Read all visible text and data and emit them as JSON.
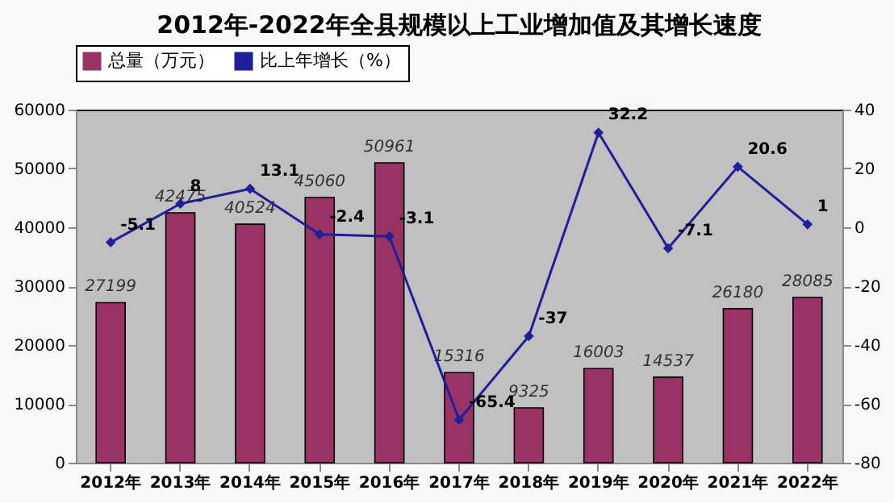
{
  "chart_data": {
    "type": "bar",
    "title": "2012年-2022年全县规模以上工业增加值及其增长速度",
    "categories": [
      "2012年",
      "2013年",
      "2014年",
      "2015年",
      "2016年",
      "2017年",
      "2018年",
      "2019年",
      "2020年",
      "2021年",
      "2022年"
    ],
    "series": [
      {
        "name": "总量（万元）",
        "color": "#993366",
        "values": [
          27199,
          42475,
          40524,
          45060,
          50961,
          15316,
          9325,
          16003,
          14537,
          26180,
          28085
        ]
      },
      {
        "name": "比上年增长（%）",
        "type": "line",
        "axis": "y2",
        "color": "#1f1f99",
        "marker": "diamond",
        "values": [
          -5.1,
          8,
          13.1,
          -2.4,
          -3.1,
          -65.4,
          -37,
          32.2,
          -7.1,
          20.6,
          1
        ]
      }
    ],
    "ylim": [
      0,
      60000
    ],
    "yticks": [
      0,
      10000,
      20000,
      30000,
      40000,
      50000,
      60000
    ],
    "y2lim": [
      -80,
      40
    ],
    "y2ticks": [
      -80,
      -60,
      -40,
      -20,
      0,
      20,
      40
    ],
    "data_labels": true,
    "grid": false,
    "legend": "top"
  }
}
